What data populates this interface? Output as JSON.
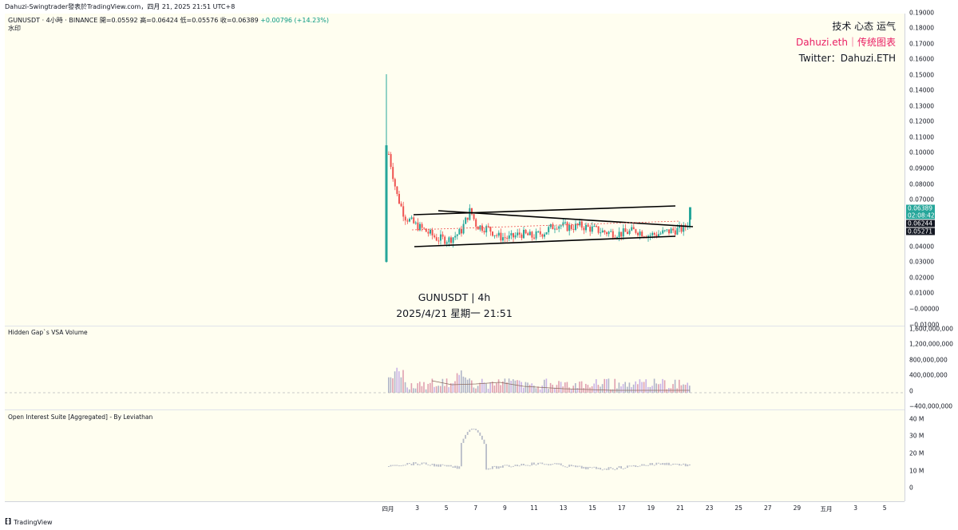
{
  "header": {
    "title": "Dahuzi-Swingtrader發表於TradingView.com，四月 21, 2025 21:51 UTC+8"
  },
  "symbol_line": {
    "symbol": "GUNUSDT · 4小時 · BINANCE",
    "open": "開=0.05592",
    "high": "高=0.06424",
    "low": "低=0.05576",
    "close": "收=0.06389",
    "change": "+0.00796 (+14.23%)"
  },
  "watermark_small": "水印",
  "watermark_top": {
    "line1": "技术 心态 运气",
    "line2": "Dahuzi.eth｜传统图表",
    "line3": "Twitter：Dahuzi.ETH"
  },
  "center_watermark": {
    "line1": "GUNUSDT | 4h",
    "line2": "2025/4/21 星期一 21:51"
  },
  "panes": {
    "volume_title": "Hidden Gap`s VSA Volume",
    "oi_title": "Open Interest Suite [Aggregated] - By Leviathan"
  },
  "price_axis": [
    "0.19000",
    "0.18000",
    "0.17000",
    "0.16000",
    "0.15000",
    "0.14000",
    "0.13000",
    "0.12000",
    "0.11000",
    "0.10000",
    "0.09000",
    "0.08000",
    "0.07000",
    "0.06000",
    "0.05000",
    "0.04000",
    "0.03000",
    "0.02000",
    "0.01000",
    "−0.00000",
    "−0.01000"
  ],
  "price_tags": {
    "last": "0.06389",
    "countdown": "02:08:42",
    "line1": "0.06244",
    "line2": "0.05271"
  },
  "volume_axis": [
    "1,600,000,000",
    "1,200,000,000",
    "800,000,000",
    "400,000,000",
    "0",
    "−400,000,000"
  ],
  "oi_axis": [
    "40 M",
    "30 M",
    "20 M",
    "10 M",
    "0"
  ],
  "time_axis": [
    "四月",
    "3",
    "5",
    "7",
    "9",
    "11",
    "13",
    "15",
    "17",
    "19",
    "21",
    "23",
    "25",
    "27",
    "29",
    "五月",
    "3",
    "5"
  ],
  "footer": {
    "brand": "TradingView",
    "logo_glyph": "⁅⁆"
  },
  "colors": {
    "up": "#26a69a",
    "down": "#ef5350",
    "chart_bg": "#fffef0",
    "accent_pink": "#e91e63",
    "last_price": "#26a69a"
  }
}
